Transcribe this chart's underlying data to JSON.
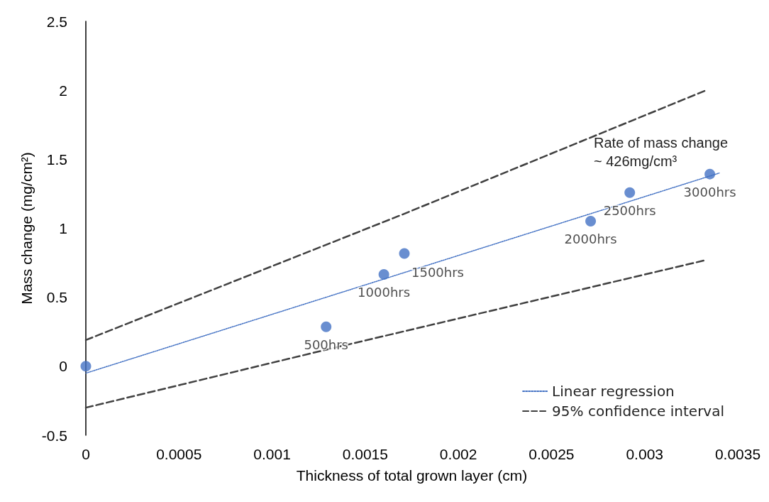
{
  "chart_data": {
    "type": "scatter",
    "xlabel": "Thickness of total grown layer (cm)",
    "ylabel": "Mass change (mg/cm²)",
    "xlim": [
      0,
      0.0035
    ],
    "xticks": [
      0,
      0.0005,
      0.001,
      0.0015,
      0.002,
      0.0025,
      0.003,
      0.0035
    ],
    "ylim": [
      -0.5,
      2.5
    ],
    "yticks": [
      -0.5,
      0,
      0.5,
      1,
      1.5,
      2,
      2.5
    ],
    "grid": false,
    "legend": "bottom right",
    "annotations": [
      "Rate of mass change\n~ 426mg/cm³",
      {
        "text": "500hrs",
        "x": 0.00129,
        "y": 0.286
      },
      {
        "text": "1000hrs",
        "x": 0.0016,
        "y": 0.666
      },
      {
        "text": "1500hrs",
        "x": 0.00171,
        "y": 0.817
      },
      {
        "text": "2000hrs",
        "x": 0.00271,
        "y": 1.052
      },
      {
        "text": "2500hrs",
        "x": 0.00292,
        "y": 1.258
      },
      {
        "text": "3000hrs",
        "x": 0.00335,
        "y": 1.393
      }
    ],
    "series": [
      {
        "marker": "circle",
        "color": "#4472c4",
        "x": [
          0,
          0.00129,
          0.0016,
          0.00171,
          0.00271,
          0.00292,
          0.00335
        ],
        "values": [
          0,
          0.286,
          0.666,
          0.817,
          1.052,
          1.258,
          1.393
        ]
      },
      {
        "type": "line",
        "name": "Linear regression",
        "color": "#4472c4",
        "line_style": "dotted",
        "x": [
          0,
          0.0034
        ],
        "values": [
          -0.05,
          1.4
        ]
      },
      {
        "type": "line",
        "name": "95% confidence interval",
        "color": "#404040",
        "line_style": "dashed",
        "x": [
          0,
          0.0017,
          0.00333
        ],
        "values": [
          0.19,
          1.1,
          2.0
        ]
      },
      {
        "type": "line",
        "color": "#404040",
        "line_style": "dashed",
        "x": [
          0,
          0.00129,
          0.00333
        ],
        "values": [
          -0.3,
          0.12,
          0.77
        ]
      }
    ]
  }
}
